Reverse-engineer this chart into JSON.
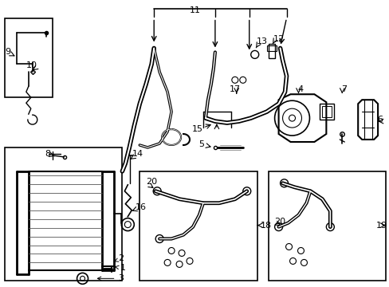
{
  "bg_color": "#ffffff",
  "fig_width": 4.89,
  "fig_height": 3.6,
  "dpi": 100,
  "line_color": "#000000",
  "text_color": "#000000"
}
